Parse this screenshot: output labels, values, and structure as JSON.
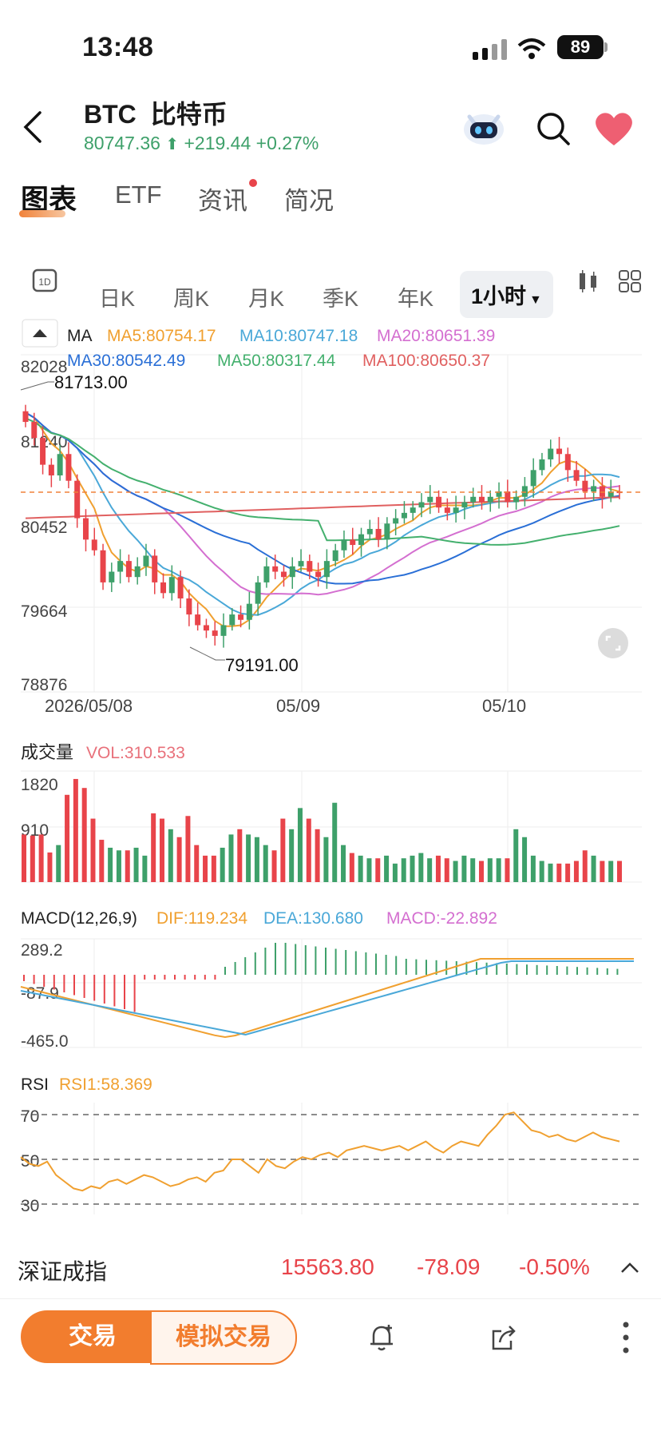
{
  "status_bar": {
    "time": "13:48",
    "battery": "89"
  },
  "header": {
    "symbol": "BTC",
    "name": "比特币",
    "price": "80747.36",
    "change": "+219.44",
    "change_pct": "+0.27%"
  },
  "tabs": [
    {
      "label": "图表",
      "active": true
    },
    {
      "label": "ETF",
      "active": false
    },
    {
      "label": "资讯",
      "active": false
    },
    {
      "label": "简况",
      "active": false
    }
  ],
  "periods": [
    "日K",
    "周K",
    "月K",
    "季K",
    "年K",
    "1小时"
  ],
  "period_1d_icon_label": "1D",
  "ma_legend": {
    "label": "MA",
    "items": [
      {
        "text": "MA5:80754.17",
        "color": "#f0a030"
      },
      {
        "text": "MA10:80747.18",
        "color": "#4aa8d8"
      },
      {
        "text": "MA20:80651.39",
        "color": "#d46fd0"
      },
      {
        "text": "MA30:80542.49",
        "color": "#2a6fd6"
      },
      {
        "text": "MA50:80317.44",
        "color": "#44b06e"
      },
      {
        "text": "MA100:80650.37",
        "color": "#e06060"
      }
    ]
  },
  "price_axis": [
    "82028",
    "81240",
    "80452",
    "79664",
    "78876"
  ],
  "annotations": {
    "high": "81713.00",
    "low": "79191.00"
  },
  "date_axis": [
    "2026/05/08",
    "05/09",
    "05/10"
  ],
  "volume": {
    "title": "成交量",
    "value": "VOL:310.533",
    "ticks": [
      "1820",
      "910"
    ]
  },
  "macd": {
    "title": "MACD(12,26,9)",
    "dif": "DIF:119.234",
    "dea": "DEA:130.680",
    "macd": "MACD:-22.892",
    "ticks": [
      "289.2",
      "-87.9",
      "-465.0"
    ]
  },
  "rsi": {
    "title": "RSI",
    "value": "RSI1:58.369",
    "ticks": [
      "70",
      "50",
      "30"
    ]
  },
  "ticker": {
    "name": "深证成指",
    "value": "15563.80",
    "change": "-78.09",
    "pct": "-0.50%"
  },
  "footer": {
    "trade": "交易",
    "simulated": "模拟交易"
  },
  "colors": {
    "up": "#3ea06a",
    "down": "#e8444a",
    "accent": "#f27d2e"
  },
  "chart_data": [
    {
      "type": "candlestick",
      "title": "",
      "x": [
        "2026/05/08",
        "05/09",
        "05/10"
      ],
      "ylim": [
        78876,
        82028
      ],
      "high": 81713.0,
      "low": 79191.0,
      "last": 80747.36
    },
    {
      "type": "bar",
      "title": "成交量",
      "ylim": [
        0,
        2100
      ],
      "values": [
        900,
        880,
        900,
        560,
        700,
        1650,
        1950,
        1780,
        1200,
        800,
        650,
        600,
        600,
        650,
        500,
        1300,
        1200,
        1000,
        850,
        1250,
        700,
        500,
        500,
        650,
        900,
        1000,
        900,
        850,
        700,
        600,
        1200,
        1000,
        1400,
        1200,
        1000,
        850,
        1500,
        700,
        550,
        500,
        450,
        450,
        500,
        350,
        450,
        500,
        550,
        450,
        500,
        450,
        400,
        500,
        450,
        400,
        450,
        450,
        450,
        1000,
        850,
        500,
        400,
        350,
        350,
        350,
        400,
        600,
        500,
        400,
        400,
        400
      ]
    },
    {
      "type": "line",
      "title": "RSI",
      "ylim": [
        25,
        75
      ],
      "series": [
        {
          "name": "RSI1",
          "values": [
            51,
            48,
            47,
            49,
            43,
            40,
            37,
            36,
            38,
            37,
            40,
            41,
            39,
            41,
            43,
            42,
            40,
            38,
            39,
            41,
            42,
            40,
            44,
            45,
            50,
            50,
            47,
            44,
            50,
            47,
            46,
            49,
            51,
            50,
            52,
            53,
            51,
            54,
            55,
            56,
            55,
            54,
            55,
            56,
            54,
            56,
            58,
            55,
            53,
            56,
            58,
            57,
            56,
            61,
            65,
            70,
            71,
            67,
            63,
            62,
            60,
            61,
            59,
            58,
            60,
            62,
            60,
            59,
            58
          ]
        }
      ]
    }
  ]
}
